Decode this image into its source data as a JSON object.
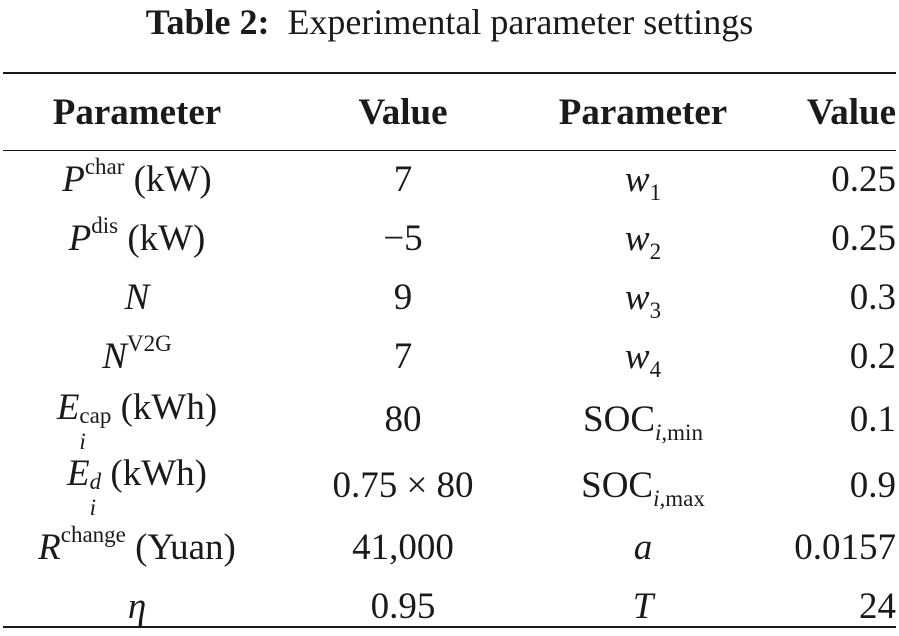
{
  "caption": {
    "label": "Table 2:",
    "text": "Experimental parameter settings"
  },
  "columns": [
    "Parameter",
    "Value",
    "Parameter",
    "Value"
  ],
  "rows": [
    {
      "p1_sym": "P",
      "p1_sup": "char",
      "p1_unit": "(kW)",
      "v1": "7",
      "p2_sym": "w",
      "p2_sub": "1",
      "v2": "0.25"
    },
    {
      "p1_sym": "P",
      "p1_sup": "dis",
      "p1_unit": "(kW)",
      "v1": "−5",
      "p2_sym": "w",
      "p2_sub": "2",
      "v2": "0.25"
    },
    {
      "p1_sym": "N",
      "v1": "9",
      "p2_sym": "w",
      "p2_sub": "3",
      "v2": "0.3"
    },
    {
      "p1_sym": "N",
      "p1_sup": "V2G",
      "v1": "7",
      "p2_sym": "w",
      "p2_sub": "4",
      "v2": "0.2"
    },
    {
      "p1_sym": "E",
      "p1_sup": "cap",
      "p1_sub": "i",
      "p1_unit": "(kWh)",
      "v1": "80",
      "p2_text": "SOC",
      "p2_sub_i": "i",
      "p2_sub": ",min",
      "v2": "0.1"
    },
    {
      "p1_sym": "E",
      "p1_sup": "d",
      "p1_sub": "i",
      "p1_unit": "(kWh)",
      "v1": "0.75 × 80",
      "p2_text": "SOC",
      "p2_sub_i": "i",
      "p2_sub": ",max",
      "v2": "0.9"
    },
    {
      "p1_sym": "R",
      "p1_sup": "change",
      "p1_unit": "(Yuan)",
      "v1": "41,000",
      "p2_sym": "a",
      "v2": "0.0157"
    },
    {
      "p1_sym": "η",
      "v1": "0.95",
      "p2_sym": "T",
      "v2": "24"
    }
  ]
}
